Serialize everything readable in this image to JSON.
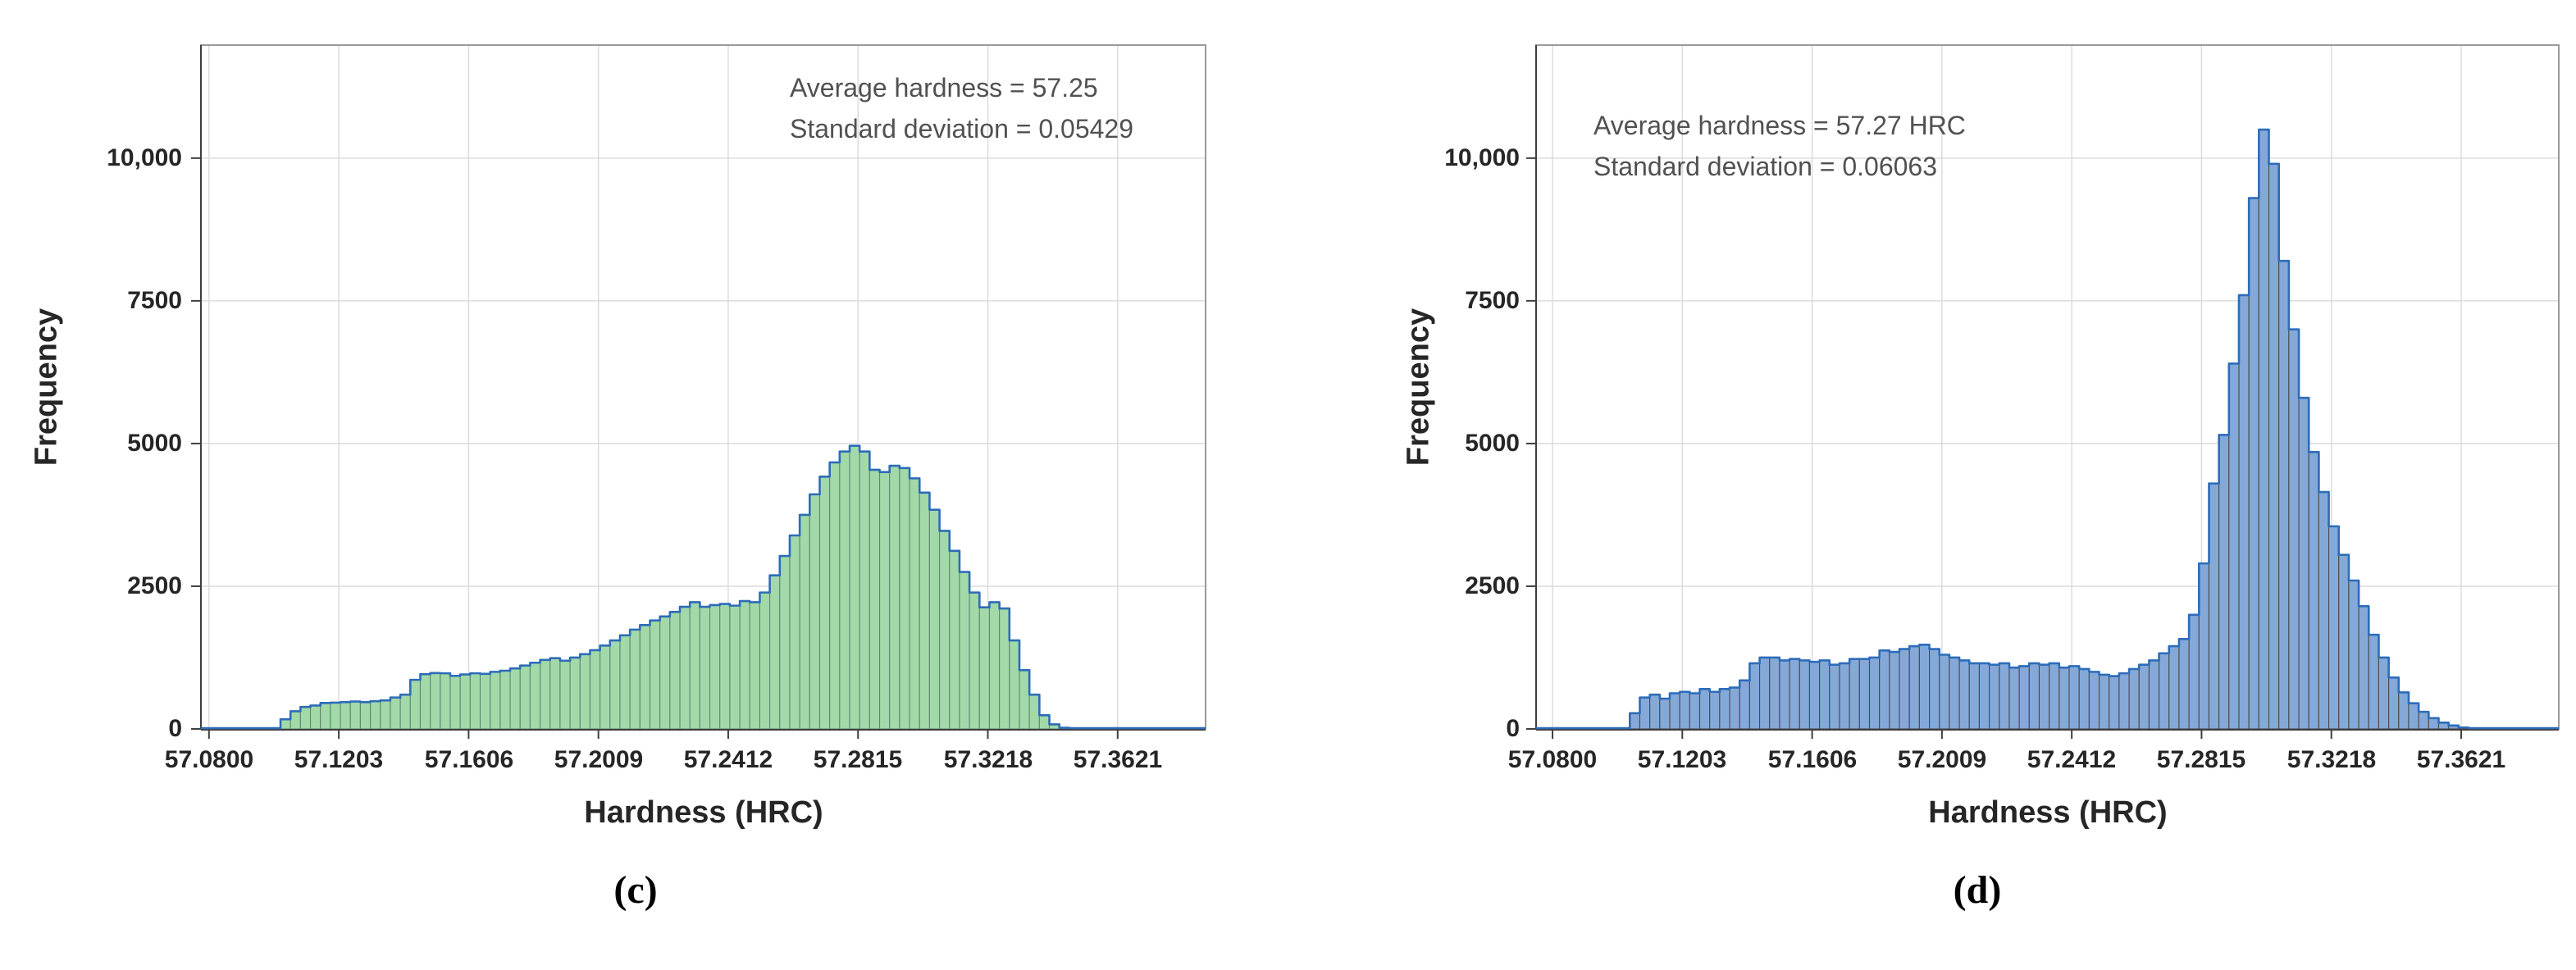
{
  "chart_data": [
    {
      "type": "bar",
      "subtype": "histogram",
      "panel_label": "(c)",
      "title": "",
      "xlabel": "Hardness (HRC)",
      "ylabel": "Frequency",
      "annotation": [
        "Average hardness = 57.25",
        "Standard deviation = 0.05429"
      ],
      "average_hardness": 57.25,
      "standard_deviation": 0.05429,
      "xticks": [
        "57.0800",
        "57.1203",
        "57.1606",
        "57.2009",
        "57.2412",
        "57.2815",
        "57.3218",
        "57.3621"
      ],
      "yticks": [
        {
          "value": 0,
          "label": "0"
        },
        {
          "value": 2500,
          "label": "2500"
        },
        {
          "value": 5000,
          "label": "5000"
        },
        {
          "value": 7500,
          "label": "7500"
        },
        {
          "value": 10000,
          "label": "10,000"
        }
      ],
      "xlim": [
        57.0775,
        57.3894
      ],
      "ylim": [
        0,
        11980
      ],
      "grid": true,
      "legend_position": "none",
      "bin_start": 57.1022,
      "bin_width": 0.0031,
      "bar_heights": [
        170,
        310,
        385,
        410,
        455,
        460,
        470,
        480,
        470,
        485,
        500,
        550,
        600,
        860,
        960,
        980,
        975,
        930,
        955,
        975,
        965,
        1000,
        1020,
        1060,
        1110,
        1160,
        1210,
        1240,
        1195,
        1250,
        1310,
        1380,
        1460,
        1550,
        1640,
        1740,
        1820,
        1900,
        1970,
        2050,
        2140,
        2220,
        2140,
        2170,
        2190,
        2160,
        2240,
        2220,
        2390,
        2690,
        3030,
        3390,
        3750,
        4110,
        4420,
        4670,
        4860,
        4960,
        4860,
        4540,
        4500,
        4610,
        4570,
        4390,
        4140,
        3840,
        3470,
        3120,
        2750,
        2390,
        2130,
        2220,
        2110,
        1550,
        1030,
        600,
        240,
        80,
        20
      ],
      "colors": {
        "bar_fill": "#a2d9a9",
        "bar_edge": "#61876f",
        "step_line": "#2d6cb8"
      }
    },
    {
      "type": "bar",
      "subtype": "histogram",
      "panel_label": "(d)",
      "title": "",
      "xlabel": "Hardness (HRC)",
      "ylabel": "Frequency",
      "annotation": [
        "Average hardness = 57.27 HRC",
        "Standard deviation = 0.06063"
      ],
      "average_hardness": 57.27,
      "standard_deviation": 0.06063,
      "xticks": [
        "57.0800",
        "57.1203",
        "57.1606",
        "57.2009",
        "57.2412",
        "57.2815",
        "57.3218",
        "57.3621"
      ],
      "yticks": [
        {
          "value": 0,
          "label": "0"
        },
        {
          "value": 2500,
          "label": "2500"
        },
        {
          "value": 5000,
          "label": "5000"
        },
        {
          "value": 7500,
          "label": "7500"
        },
        {
          "value": 10000,
          "label": "10,000"
        }
      ],
      "xlim": [
        57.0749,
        57.3924
      ],
      "ylim": [
        0,
        11980
      ],
      "grid": true,
      "legend_position": "none",
      "bin_start": 57.104,
      "bin_width": 0.0031,
      "bar_heights": [
        275,
        550,
        600,
        530,
        625,
        650,
        625,
        700,
        650,
        700,
        725,
        850,
        1150,
        1250,
        1250,
        1200,
        1225,
        1200,
        1175,
        1200,
        1125,
        1150,
        1225,
        1225,
        1250,
        1375,
        1350,
        1400,
        1450,
        1475,
        1400,
        1300,
        1250,
        1200,
        1150,
        1150,
        1125,
        1150,
        1075,
        1100,
        1150,
        1125,
        1150,
        1075,
        1100,
        1050,
        1000,
        950,
        925,
        975,
        1050,
        1125,
        1200,
        1325,
        1450,
        1575,
        2000,
        2900,
        4300,
        5150,
        6400,
        7600,
        9300,
        10500,
        9900,
        8200,
        7000,
        5800,
        4850,
        4150,
        3550,
        3050,
        2600,
        2150,
        1650,
        1250,
        900,
        640,
        450,
        300,
        190,
        110,
        60,
        25
      ],
      "colors": {
        "bar_fill": "#84a9d8",
        "bar_edge": "#4a4a4a",
        "step_line": "#2d6cb8"
      }
    }
  ],
  "style": {
    "grid_color": "#dcdcdc",
    "frame_color": "#9a9a9a",
    "axis_color": "#3f3f3f",
    "background": "#ffffff"
  }
}
